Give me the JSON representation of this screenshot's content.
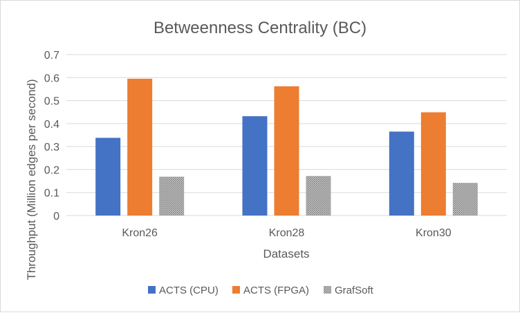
{
  "chart_data": {
    "type": "bar",
    "title": "Betweenness Centrality (BC)",
    "xlabel": "Datasets",
    "ylabel": "Throughput (Million edges per second)",
    "categories": [
      "Kron26",
      "Kron28",
      "Kron30"
    ],
    "ylim": [
      0,
      0.7
    ],
    "yticks": [
      "0",
      "0.1",
      "0.2",
      "0.3",
      "0.4",
      "0.5",
      "0.6",
      "0.7"
    ],
    "grid": true,
    "legend_position": "bottom",
    "series": [
      {
        "name": "ACTS (CPU)",
        "color": "#4472c4",
        "values": [
          0.338,
          0.432,
          0.365
        ]
      },
      {
        "name": "ACTS (FPGA)",
        "color": "#ed7d31",
        "values": [
          0.595,
          0.562,
          0.449
        ]
      },
      {
        "name": "GrafSoft",
        "color": "#a5a5a5",
        "pattern": "dotted",
        "values": [
          0.169,
          0.172,
          0.142
        ]
      }
    ]
  }
}
